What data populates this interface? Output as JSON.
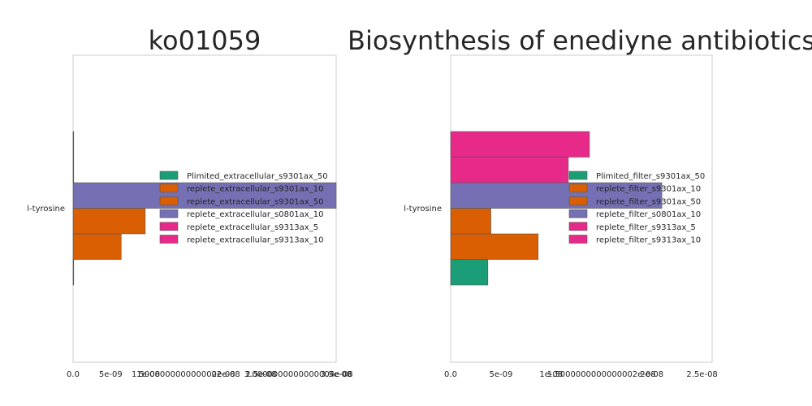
{
  "chart_data": [
    {
      "type": "bar",
      "orientation": "horizontal",
      "title": "ko01059",
      "category": "l-tyrosine",
      "xlim": [
        0,
        3.5e-08
      ],
      "x_tick_labels": [
        "0.0",
        "5e-09",
        "1e-08",
        "1.5000000000000002e-08",
        "2e-08",
        "2.5e-08",
        "3.0000000000000004e-08",
        "3.5e-08"
      ],
      "x_tick_values": [
        0,
        5e-09,
        1e-08,
        1.5e-08,
        2e-08,
        2.5e-08,
        3e-08,
        3.5e-08
      ],
      "legend_position": "center-right",
      "series": [
        {
          "name": "Plimited_extracellular_s9301ax_50",
          "value": 0,
          "color": "#1b9e77"
        },
        {
          "name": "replete_extracellular_s9301ax_10",
          "value": 6.4e-09,
          "color": "#d95f02"
        },
        {
          "name": "replete_extracellular_s9301ax_50",
          "value": 9.6e-09,
          "color": "#d95f02"
        },
        {
          "name": "replete_extracellular_s0801ax_10",
          "value": 3.5e-08,
          "color": "#7570b3"
        },
        {
          "name": "replete_extracellular_s9313ax_5",
          "value": 0,
          "color": "#e7298a"
        },
        {
          "name": "replete_extracellular_s9313ax_10",
          "value": 0,
          "color": "#e7298a"
        }
      ]
    },
    {
      "type": "bar",
      "orientation": "horizontal",
      "title": "Biosynthesis of enediyne antibiotics",
      "category": "l-tyrosine",
      "xlim": [
        0,
        2.6e-08
      ],
      "x_tick_labels": [
        "0.0",
        "5e-09",
        "1e-08",
        "1.5000000000000002e-08",
        "2e-08",
        "2.5e-08"
      ],
      "x_tick_values": [
        0,
        5e-09,
        1e-08,
        1.5e-08,
        2e-08,
        2.5e-08
      ],
      "legend_position": "center-right",
      "series": [
        {
          "name": "Plimited_filter_s9301ax_50",
          "value": 3.7e-09,
          "color": "#1b9e77"
        },
        {
          "name": "replete_filter_s9301ax_10",
          "value": 8.7e-09,
          "color": "#d95f02"
        },
        {
          "name": "replete_filter_s9301ax_50",
          "value": 4e-09,
          "color": "#d95f02"
        },
        {
          "name": "replete_filter_s0801ax_10",
          "value": 2.1e-08,
          "color": "#7570b3"
        },
        {
          "name": "replete_filter_s9313ax_5",
          "value": 1.17e-08,
          "color": "#e7298a"
        },
        {
          "name": "replete_filter_s9313ax_10",
          "value": 1.38e-08,
          "color": "#e7298a"
        }
      ]
    }
  ]
}
